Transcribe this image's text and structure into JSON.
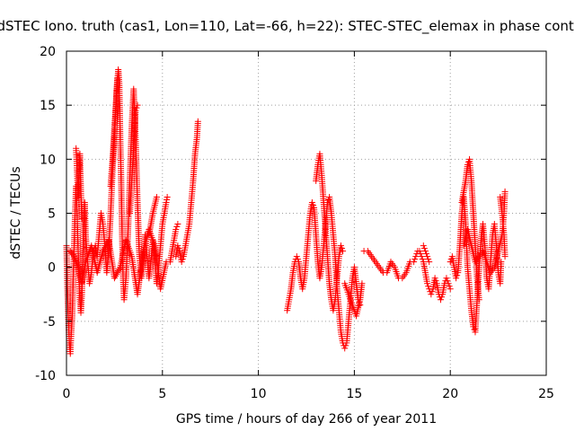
{
  "chart_data": {
    "type": "scatter",
    "title": "dSTEC Iono. truth (cas1, Lon=110, Lat=-66, h=22): STEC-STEC_elemax in phase cont.",
    "xlabel": "GPS time / hours of day 266 of year 2011",
    "ylabel": "dSTEC  / TECUs",
    "xlim": [
      0,
      25
    ],
    "ylim": [
      -10,
      20
    ],
    "xticks": [
      0,
      5,
      10,
      15,
      20,
      25
    ],
    "yticks": [
      -10,
      -5,
      0,
      5,
      10,
      15,
      20
    ],
    "x_tick_labels": [
      "0",
      "5",
      "10",
      "15",
      "20",
      "25"
    ],
    "y_tick_labels": [
      "-10",
      "-5",
      "0",
      "5",
      "10",
      "15",
      "20"
    ],
    "grid": true,
    "marker": "+",
    "color": "#ff0000",
    "segments": [
      {
        "points": [
          [
            0.0,
            2.0
          ],
          [
            0.05,
            -2.0
          ],
          [
            0.1,
            -5.0
          ],
          [
            0.15,
            -7.0
          ],
          [
            0.2,
            -8.0
          ],
          [
            0.25,
            -6.0
          ],
          [
            0.3,
            -4.5
          ],
          [
            0.35,
            -1.0
          ],
          [
            0.4,
            2.0
          ],
          [
            0.45,
            5.0
          ],
          [
            0.5,
            7.5
          ],
          [
            0.55,
            5.0
          ],
          [
            0.6,
            2.0
          ],
          [
            0.65,
            -1.0
          ],
          [
            0.7,
            -3.0
          ],
          [
            0.75,
            -4.2
          ],
          [
            0.8,
            -2.5
          ],
          [
            0.85,
            1.0
          ],
          [
            0.9,
            4.0
          ],
          [
            0.95,
            6.0
          ],
          [
            1.0,
            3.0
          ],
          [
            1.1,
            0.5
          ],
          [
            1.2,
            -1.5
          ],
          [
            1.3,
            -0.5
          ],
          [
            1.4,
            1.5
          ],
          [
            1.5,
            2.0
          ],
          [
            1.6,
            1.0
          ],
          [
            1.7,
            3.0
          ],
          [
            1.8,
            5.0
          ],
          [
            1.9,
            4.0
          ],
          [
            2.0,
            2.0
          ],
          [
            2.1,
            -0.5
          ],
          [
            2.2,
            1.5
          ],
          [
            2.3,
            5.0
          ],
          [
            2.4,
            9.0
          ],
          [
            2.5,
            12.0
          ],
          [
            2.6,
            16.0
          ],
          [
            2.7,
            18.3
          ],
          [
            2.75,
            17.0
          ],
          [
            2.8,
            12.0
          ],
          [
            2.85,
            8.0
          ],
          [
            2.9,
            3.0
          ],
          [
            2.95,
            -1.0
          ],
          [
            3.0,
            -3.0
          ],
          [
            3.1,
            -1.0
          ],
          [
            3.2,
            3.0
          ],
          [
            3.3,
            8.0
          ],
          [
            3.4,
            13.0
          ],
          [
            3.5,
            16.5
          ],
          [
            3.6,
            12.0
          ],
          [
            3.7,
            6.0
          ],
          [
            3.8,
            1.0
          ],
          [
            3.9,
            -1.0
          ],
          [
            4.0,
            0.5
          ],
          [
            4.1,
            3.0
          ],
          [
            4.2,
            1.0
          ],
          [
            4.3,
            -1.0
          ],
          [
            4.4,
            0.5
          ],
          [
            4.5,
            2.5
          ],
          [
            4.6,
            1.0
          ],
          [
            4.7,
            -1.5
          ],
          [
            4.8,
            0.0
          ],
          [
            4.9,
            2.0
          ],
          [
            5.0,
            4.0
          ],
          [
            5.1,
            5.0
          ],
          [
            5.2,
            6.0
          ],
          [
            5.25,
            6.5
          ]
        ]
      },
      {
        "points": [
          [
            0.2,
            1.5
          ],
          [
            0.4,
            1.0
          ],
          [
            0.6,
            0.0
          ],
          [
            0.8,
            -1.5
          ],
          [
            1.0,
            0.5
          ],
          [
            1.3,
            2.0
          ],
          [
            1.6,
            -0.5
          ],
          [
            1.9,
            1.5
          ],
          [
            2.2,
            2.5
          ],
          [
            2.5,
            -1.0
          ],
          [
            2.8,
            0.0
          ],
          [
            3.1,
            2.5
          ],
          [
            3.4,
            1.0
          ],
          [
            3.7,
            -2.5
          ],
          [
            4.0,
            1.5
          ],
          [
            4.3,
            3.5
          ],
          [
            4.6,
            2.0
          ],
          [
            4.9,
            -2.0
          ],
          [
            5.2,
            0.5
          ]
        ]
      },
      {
        "points": [
          [
            0.5,
            11.0
          ],
          [
            0.55,
            9.0
          ],
          [
            0.6,
            6.5
          ],
          [
            0.65,
            8.5
          ],
          [
            0.7,
            10.5
          ],
          [
            0.75,
            7.0
          ],
          [
            0.8,
            4.5
          ]
        ]
      },
      {
        "points": [
          [
            2.3,
            7.5
          ],
          [
            2.4,
            10.0
          ],
          [
            2.5,
            13.0
          ],
          [
            2.6,
            15.5
          ],
          [
            2.65,
            17.5
          ]
        ]
      },
      {
        "points": [
          [
            3.3,
            5.0
          ],
          [
            3.4,
            8.0
          ],
          [
            3.5,
            11.0
          ],
          [
            3.6,
            14.5
          ],
          [
            3.7,
            15.0
          ]
        ]
      },
      {
        "points": [
          [
            4.3,
            3.0
          ],
          [
            4.5,
            5.0
          ],
          [
            4.7,
            6.5
          ]
        ]
      },
      {
        "points": [
          [
            5.4,
            0.5
          ],
          [
            5.5,
            1.5
          ],
          [
            5.6,
            2.5
          ],
          [
            5.7,
            3.5
          ],
          [
            5.8,
            4.0
          ]
        ]
      },
      {
        "points": [
          [
            5.7,
            1.0
          ],
          [
            5.8,
            2.0
          ],
          [
            5.9,
            1.5
          ],
          [
            6.0,
            0.5
          ],
          [
            6.1,
            1.0
          ],
          [
            6.2,
            2.0
          ],
          [
            6.3,
            3.0
          ],
          [
            6.4,
            4.0
          ],
          [
            6.5,
            6.0
          ],
          [
            6.6,
            8.0
          ],
          [
            6.7,
            10.5
          ],
          [
            6.8,
            12.0
          ],
          [
            6.85,
            13.5
          ]
        ]
      },
      {
        "points": [
          [
            11.5,
            -4.0
          ],
          [
            11.6,
            -3.0
          ],
          [
            11.7,
            -2.0
          ],
          [
            11.8,
            -0.5
          ],
          [
            11.9,
            0.5
          ],
          [
            12.0,
            1.0
          ],
          [
            12.1,
            0.5
          ],
          [
            12.2,
            -1.0
          ],
          [
            12.3,
            -2.0
          ],
          [
            12.4,
            -1.0
          ],
          [
            12.5,
            1.0
          ],
          [
            12.6,
            3.0
          ],
          [
            12.7,
            5.0
          ],
          [
            12.8,
            6.0
          ],
          [
            12.9,
            5.5
          ],
          [
            13.0,
            3.0
          ],
          [
            13.1,
            0.5
          ],
          [
            13.2,
            -1.0
          ],
          [
            13.3,
            0.0
          ],
          [
            13.4,
            2.0
          ],
          [
            13.5,
            4.0
          ],
          [
            13.6,
            6.0
          ],
          [
            13.7,
            6.5
          ],
          [
            13.8,
            5.0
          ],
          [
            13.9,
            3.0
          ],
          [
            14.0,
            1.0
          ],
          [
            14.1,
            -2.0
          ],
          [
            14.2,
            -4.0
          ],
          [
            14.3,
            -6.0
          ],
          [
            14.4,
            -7.0
          ],
          [
            14.5,
            -7.5
          ],
          [
            14.6,
            -7.0
          ],
          [
            14.7,
            -5.0
          ],
          [
            14.8,
            -3.0
          ],
          [
            14.9,
            -1.0
          ],
          [
            15.0,
            0.0
          ],
          [
            15.1,
            -1.5
          ],
          [
            15.2,
            -3.0
          ],
          [
            15.3,
            -3.5
          ]
        ]
      },
      {
        "points": [
          [
            13.0,
            8.0
          ],
          [
            13.1,
            9.5
          ],
          [
            13.2,
            10.5
          ],
          [
            13.3,
            8.5
          ],
          [
            13.4,
            6.0
          ],
          [
            13.5,
            3.5
          ],
          [
            13.6,
            1.0
          ],
          [
            13.7,
            -1.5
          ],
          [
            13.8,
            -3.0
          ],
          [
            13.9,
            -4.0
          ],
          [
            14.0,
            -3.0
          ],
          [
            14.1,
            -1.0
          ],
          [
            14.2,
            1.0
          ],
          [
            14.3,
            2.0
          ],
          [
            14.4,
            1.5
          ]
        ]
      },
      {
        "points": [
          [
            14.5,
            -1.5
          ],
          [
            14.7,
            -2.5
          ],
          [
            14.9,
            -3.5
          ],
          [
            15.1,
            -4.5
          ],
          [
            15.3,
            -3.0
          ],
          [
            15.4,
            -1.5
          ]
        ]
      },
      {
        "points": [
          [
            15.5,
            1.5
          ],
          [
            15.7,
            1.5
          ],
          [
            15.9,
            1.0
          ],
          [
            16.1,
            0.5
          ],
          [
            16.3,
            0.0
          ],
          [
            16.5,
            -0.5
          ],
          [
            16.7,
            -0.5
          ],
          [
            16.9,
            0.5
          ],
          [
            17.1,
            0.0
          ],
          [
            17.3,
            -1.0
          ],
          [
            17.5,
            -1.0
          ],
          [
            17.7,
            -0.5
          ],
          [
            17.9,
            0.5
          ],
          [
            18.1,
            0.5
          ],
          [
            18.2,
            1.0
          ],
          [
            18.3,
            1.5
          ],
          [
            18.4,
            1.5
          ],
          [
            18.5,
            1.0
          ],
          [
            18.6,
            0.5
          ],
          [
            18.7,
            -0.5
          ],
          [
            18.8,
            -1.5
          ],
          [
            18.9,
            -2.0
          ],
          [
            19.0,
            -2.5
          ],
          [
            19.1,
            -2.0
          ],
          [
            19.2,
            -1.0
          ],
          [
            19.3,
            -1.5
          ],
          [
            19.4,
            -2.5
          ],
          [
            19.5,
            -3.0
          ],
          [
            19.6,
            -2.5
          ],
          [
            19.7,
            -1.5
          ],
          [
            19.8,
            -1.0
          ],
          [
            19.9,
            -1.5
          ],
          [
            20.0,
            -2.0
          ]
        ]
      },
      {
        "points": [
          [
            18.6,
            2.0
          ],
          [
            18.7,
            1.5
          ],
          [
            18.8,
            1.0
          ],
          [
            18.9,
            0.5
          ]
        ]
      },
      {
        "points": [
          [
            20.0,
            0.5
          ],
          [
            20.1,
            1.0
          ],
          [
            20.2,
            0.0
          ],
          [
            20.3,
            -1.0
          ],
          [
            20.4,
            -0.5
          ],
          [
            20.5,
            2.0
          ],
          [
            20.6,
            5.0
          ],
          [
            20.7,
            6.5
          ],
          [
            20.8,
            4.0
          ],
          [
            20.9,
            0.0
          ],
          [
            21.0,
            -2.0
          ],
          [
            21.1,
            -4.0
          ],
          [
            21.2,
            -5.5
          ],
          [
            21.3,
            -6.0
          ],
          [
            21.4,
            -3.0
          ],
          [
            21.5,
            0.0
          ],
          [
            21.6,
            2.5
          ],
          [
            21.7,
            4.0
          ],
          [
            21.8,
            2.0
          ],
          [
            21.9,
            -1.0
          ],
          [
            22.0,
            -2.0
          ],
          [
            22.1,
            0.5
          ],
          [
            22.2,
            3.0
          ],
          [
            22.3,
            4.0
          ],
          [
            22.4,
            2.0
          ],
          [
            22.5,
            -0.5
          ],
          [
            22.6,
            -1.5
          ],
          [
            22.65,
            0.5
          ]
        ]
      },
      {
        "points": [
          [
            20.6,
            6.0
          ],
          [
            20.8,
            8.0
          ],
          [
            20.9,
            9.5
          ],
          [
            21.0,
            10.0
          ],
          [
            21.1,
            8.0
          ],
          [
            21.2,
            5.0
          ],
          [
            21.3,
            2.0
          ],
          [
            21.4,
            -1.0
          ],
          [
            21.5,
            -3.0
          ]
        ]
      },
      {
        "points": [
          [
            20.7,
            2.0
          ],
          [
            20.9,
            3.5
          ],
          [
            21.1,
            2.0
          ],
          [
            21.3,
            0.5
          ],
          [
            21.5,
            1.0
          ],
          [
            21.7,
            1.5
          ],
          [
            21.9,
            0.5
          ],
          [
            22.1,
            -0.5
          ],
          [
            22.3,
            0.0
          ],
          [
            22.5,
            1.5
          ],
          [
            22.7,
            3.0
          ],
          [
            22.8,
            5.0
          ],
          [
            22.85,
            7.0
          ]
        ]
      },
      {
        "points": [
          [
            22.6,
            6.5
          ],
          [
            22.7,
            5.0
          ],
          [
            22.8,
            3.0
          ],
          [
            22.85,
            1.0
          ]
        ]
      }
    ]
  }
}
